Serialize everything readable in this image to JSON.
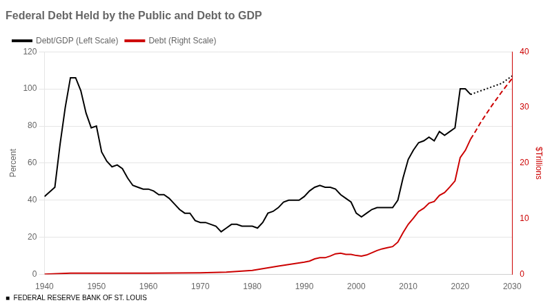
{
  "chart_data": {
    "type": "line",
    "title": "Federal Debt Held by the Public and Debt to GDP",
    "ylabel": "Percent",
    "y2label": "$Trillions",
    "annotations": [
      "■  FEDERAL RESERVE BANK OF ST. LOUIS"
    ],
    "xlim": [
      1940,
      2030
    ],
    "xticks": [
      1940,
      1950,
      1960,
      1970,
      1980,
      1990,
      2000,
      2010,
      2020,
      2030
    ],
    "ylim": [
      0,
      120
    ],
    "yticks": [
      0,
      20,
      40,
      60,
      80,
      100,
      120
    ],
    "y2lim": [
      0,
      40
    ],
    "y2ticks": [
      0,
      10,
      20,
      30,
      40
    ],
    "grid": true,
    "legend": "upper left",
    "series": [
      {
        "name": "Debt/GDP (Left Scale)",
        "color": "#000000",
        "line_style": "solid",
        "x": [
          1940,
          1942,
          1943,
          1944,
          1945,
          1946,
          1947,
          1948,
          1949,
          1950,
          1951,
          1952,
          1953,
          1954,
          1955,
          1956,
          1957,
          1958,
          1959,
          1960,
          1961,
          1962,
          1963,
          1964,
          1965,
          1966,
          1967,
          1968,
          1969,
          1970,
          1971,
          1972,
          1973,
          1974,
          1975,
          1976,
          1977,
          1978,
          1979,
          1980,
          1981,
          1982,
          1983,
          1984,
          1985,
          1986,
          1987,
          1988,
          1989,
          1990,
          1991,
          1992,
          1993,
          1994,
          1995,
          1996,
          1997,
          1998,
          1999,
          2000,
          2001,
          2002,
          2003,
          2004,
          2005,
          2006,
          2007,
          2008,
          2009,
          2010,
          2011,
          2012,
          2013,
          2014,
          2015,
          2016,
          2017,
          2018,
          2019,
          2020,
          2021,
          2022
        ],
        "values": [
          42,
          47,
          70,
          90,
          106,
          106,
          99,
          87,
          79,
          80,
          66,
          61,
          58,
          59,
          57,
          52,
          48,
          47,
          46,
          46,
          45,
          43,
          43,
          41,
          38,
          35,
          33,
          33,
          29,
          28,
          28,
          27,
          26,
          23,
          25,
          27,
          27,
          26,
          26,
          26,
          25,
          28,
          33,
          34,
          36,
          39,
          40,
          40,
          40,
          42,
          45,
          47,
          48,
          47,
          47,
          46,
          43,
          41,
          39,
          33,
          31,
          33,
          35,
          36,
          36,
          36,
          36,
          40,
          52,
          62,
          67,
          71,
          72,
          74,
          72,
          77,
          75,
          77,
          79,
          100,
          100,
          97
        ]
      },
      {
        "color": "#000000",
        "line_style": "dotted",
        "x": [
          2022,
          2023,
          2024,
          2025,
          2026,
          2027,
          2028,
          2029,
          2030
        ],
        "values": [
          97,
          98,
          99,
          100,
          101,
          102,
          103,
          105,
          107
        ]
      },
      {
        "name": "Debt (Right Scale)",
        "color": "#cc0000",
        "line_style": "solid",
        "axis": "y2",
        "x": [
          1940,
          1945,
          1950,
          1955,
          1960,
          1965,
          1970,
          1975,
          1980,
          1985,
          1990,
          1991,
          1992,
          1993,
          1994,
          1995,
          1996,
          1997,
          1998,
          1999,
          2000,
          2001,
          2002,
          2003,
          2004,
          2005,
          2006,
          2007,
          2008,
          2009,
          2010,
          2011,
          2012,
          2013,
          2014,
          2015,
          2016,
          2017,
          2018,
          2019,
          2020,
          2021,
          2022
        ],
        "values": [
          0.05,
          0.24,
          0.22,
          0.23,
          0.24,
          0.26,
          0.28,
          0.4,
          0.71,
          1.5,
          2.2,
          2.4,
          2.8,
          3.0,
          3.0,
          3.3,
          3.7,
          3.8,
          3.6,
          3.6,
          3.4,
          3.3,
          3.5,
          3.9,
          4.3,
          4.6,
          4.8,
          5.0,
          5.8,
          7.5,
          9.0,
          10.1,
          11.3,
          11.9,
          12.8,
          13.1,
          14.2,
          14.7,
          15.7,
          16.8,
          21.0,
          22.3,
          24.3
        ]
      },
      {
        "color": "#cc0000",
        "line_style": "dashed",
        "axis": "y2",
        "x": [
          2022,
          2023,
          2024,
          2025,
          2026,
          2027,
          2028,
          2029,
          2030
        ],
        "values": [
          24.3,
          25.8,
          27.4,
          28.8,
          30.2,
          31.5,
          32.8,
          34.0,
          35.2
        ]
      }
    ]
  }
}
